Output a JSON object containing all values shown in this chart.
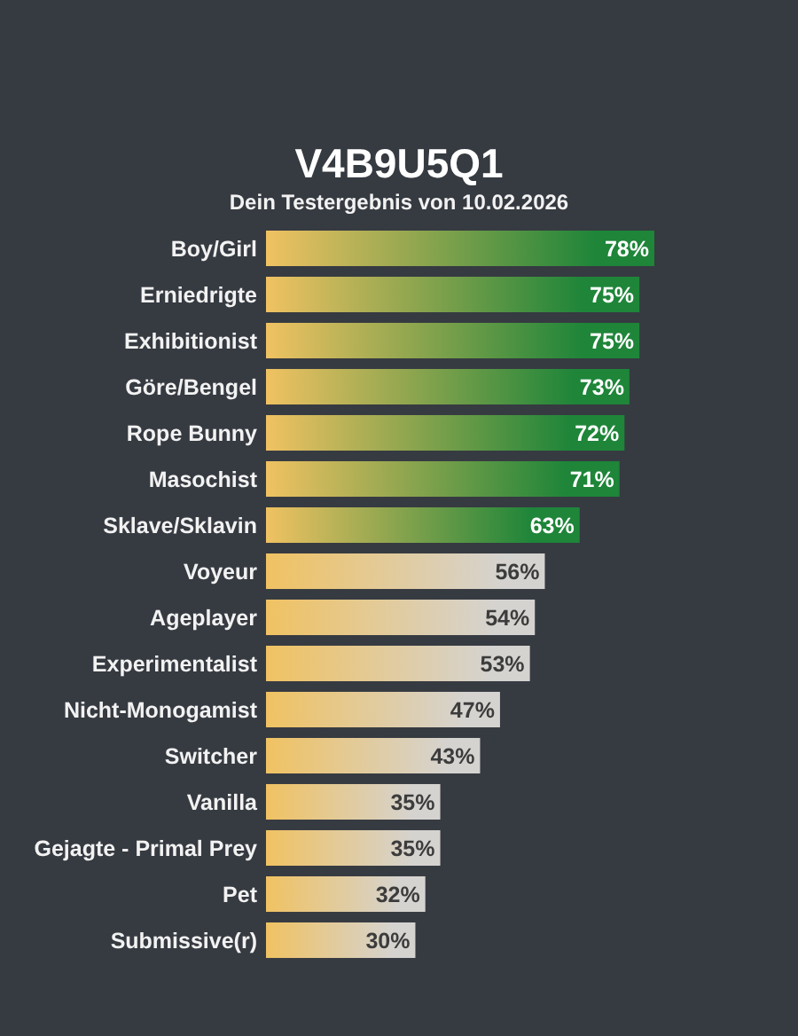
{
  "chart_data": {
    "type": "bar",
    "orientation": "horizontal",
    "title": "V4B9U5Q1",
    "subtitle": "Dein Testergebnis von 10.02.2026",
    "categories": [
      "Boy/Girl",
      "Erniedrigte",
      "Exhibitionist",
      "Göre/Bengel",
      "Rope Bunny",
      "Masochist",
      "Sklave/Sklavin",
      "Voyeur",
      "Ageplayer",
      "Experimentalist",
      "Nicht-Monogamist",
      "Switcher",
      "Vanilla",
      "Gejagte - Primal Prey",
      "Pet",
      "Submissive(r)"
    ],
    "values": [
      78,
      75,
      75,
      73,
      72,
      71,
      63,
      56,
      54,
      53,
      47,
      43,
      35,
      35,
      32,
      30
    ],
    "colors": [
      "#1e8539",
      "#1e8539",
      "#1e8539",
      "#1e8539",
      "#1e8539",
      "#1e8539",
      "#1e8539",
      "#d5d3d0",
      "#d5d3d0",
      "#d5d3d0",
      "#d5d3d0",
      "#d5d3d0",
      "#d5d3d0",
      "#d5d3d0",
      "#d5d3d0",
      "#d5d3d0"
    ],
    "value_labels": [
      "78%",
      "75%",
      "75%",
      "73%",
      "72%",
      "71%",
      "63%",
      "56%",
      "54%",
      "53%",
      "47%",
      "43%",
      "35%",
      "35%",
      "32%",
      "30%"
    ]
  }
}
